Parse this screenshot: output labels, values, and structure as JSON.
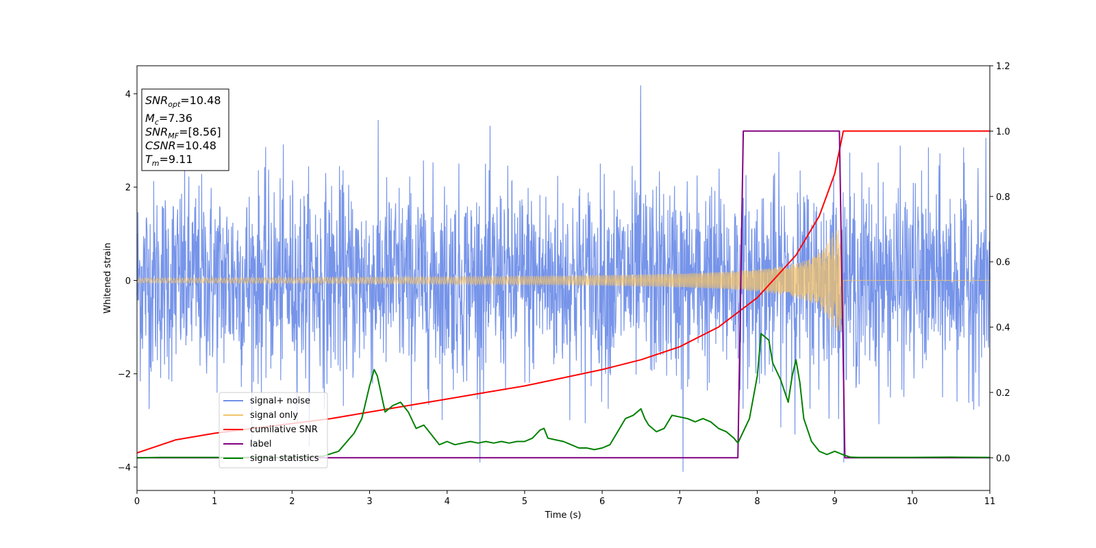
{
  "chart_data": {
    "type": "line",
    "xlabel": "Time (s)",
    "ylabel": "Whitened strain",
    "xlim": [
      0,
      11
    ],
    "ylim": [
      -4.5,
      4.6
    ],
    "y2lim": [
      -0.1,
      1.2
    ],
    "grid": false,
    "legend_position": "lower-left",
    "x_ticks": [
      "0",
      "1",
      "2",
      "3",
      "4",
      "5",
      "6",
      "7",
      "8",
      "9",
      "10",
      "11"
    ],
    "y_ticks": [
      "4",
      "2",
      "0",
      "−2",
      "−4"
    ],
    "y2_ticks": [
      "1.2",
      "1.0",
      "0.8",
      "0.6",
      "0.4",
      "0.2",
      "0.0"
    ],
    "info_box": {
      "snr_opt": {
        "sym": "SNR",
        "sub": "opt",
        "value": "=10.48"
      },
      "mc": {
        "sym": "M",
        "sub": "c",
        "value": "=7.36"
      },
      "snr_mf": {
        "sym": "SNR",
        "sub": "MF",
        "value": "=[8.56]"
      },
      "csnr": {
        "sym": "CSNR",
        "sub": "",
        "value": "=10.48"
      },
      "tm": {
        "sym": "T",
        "sub": "m",
        "value": "=9.11"
      }
    },
    "series": [
      {
        "name": "signal+ noise",
        "axis": "left",
        "color": "#6f8ee8",
        "description_type": "noise",
        "amplitude_std": 1.05,
        "peak": 4.18,
        "trough": -4.1
      },
      {
        "name": "signal only",
        "axis": "left",
        "color": "#f2c26b",
        "description_type": "chirp",
        "start_amplitude": 0.05,
        "merger_time": 9.11,
        "peak_amplitude": 1.1
      },
      {
        "name": "cumilative SNR",
        "axis": "right",
        "color": "#ff0000",
        "x": [
          0,
          0.5,
          1,
          1.5,
          2,
          2.5,
          3,
          3.5,
          4,
          4.5,
          5,
          5.5,
          6,
          6.5,
          7,
          7.5,
          8,
          8.5,
          8.8,
          9.0,
          9.05,
          9.11,
          11
        ],
        "values": [
          0.015,
          0.055,
          0.075,
          0.09,
          0.105,
          0.12,
          0.14,
          0.16,
          0.18,
          0.2,
          0.22,
          0.245,
          0.27,
          0.3,
          0.34,
          0.4,
          0.49,
          0.62,
          0.74,
          0.87,
          0.93,
          1.0,
          1.0
        ]
      },
      {
        "name": "label",
        "axis": "right",
        "color": "#800080",
        "x": [
          0,
          7.75,
          7.82,
          9.06,
          9.13,
          11
        ],
        "values": [
          0.0,
          0.0,
          1.0,
          1.0,
          0.0,
          0.0
        ]
      },
      {
        "name": "signal statistics",
        "axis": "right",
        "color": "#008000",
        "x": [
          0,
          0.3,
          1,
          2,
          2.4,
          2.6,
          2.8,
          2.9,
          3.0,
          3.06,
          3.1,
          3.2,
          3.3,
          3.4,
          3.5,
          3.6,
          3.7,
          3.8,
          3.9,
          4.0,
          4.1,
          4.2,
          4.3,
          4.4,
          4.5,
          4.6,
          4.7,
          4.8,
          4.9,
          5.0,
          5.1,
          5.2,
          5.25,
          5.3,
          5.4,
          5.5,
          5.6,
          5.7,
          5.8,
          5.9,
          6.0,
          6.1,
          6.2,
          6.3,
          6.4,
          6.5,
          6.55,
          6.6,
          6.7,
          6.8,
          6.9,
          7.0,
          7.1,
          7.2,
          7.3,
          7.4,
          7.5,
          7.6,
          7.7,
          7.75,
          7.8,
          7.9,
          8.0,
          8.05,
          8.1,
          8.15,
          8.2,
          8.3,
          8.4,
          8.45,
          8.5,
          8.55,
          8.6,
          8.7,
          8.8,
          8.9,
          9.0,
          9.1,
          9.2,
          9.3,
          10.0,
          10.5,
          11
        ],
        "values": [
          0.0,
          0.001,
          0.001,
          0.001,
          0.005,
          0.02,
          0.075,
          0.12,
          0.22,
          0.27,
          0.25,
          0.14,
          0.16,
          0.17,
          0.14,
          0.09,
          0.1,
          0.07,
          0.04,
          0.05,
          0.04,
          0.045,
          0.05,
          0.045,
          0.05,
          0.045,
          0.05,
          0.045,
          0.05,
          0.05,
          0.06,
          0.085,
          0.09,
          0.06,
          0.055,
          0.05,
          0.04,
          0.03,
          0.03,
          0.025,
          0.03,
          0.04,
          0.08,
          0.12,
          0.13,
          0.15,
          0.12,
          0.1,
          0.08,
          0.09,
          0.13,
          0.125,
          0.12,
          0.11,
          0.12,
          0.11,
          0.09,
          0.08,
          0.06,
          0.045,
          0.07,
          0.12,
          0.25,
          0.38,
          0.37,
          0.36,
          0.29,
          0.24,
          0.17,
          0.25,
          0.3,
          0.23,
          0.12,
          0.05,
          0.02,
          0.01,
          0.02,
          0.01,
          0.002,
          0.001,
          0.001,
          0.002,
          0.001
        ]
      }
    ]
  }
}
